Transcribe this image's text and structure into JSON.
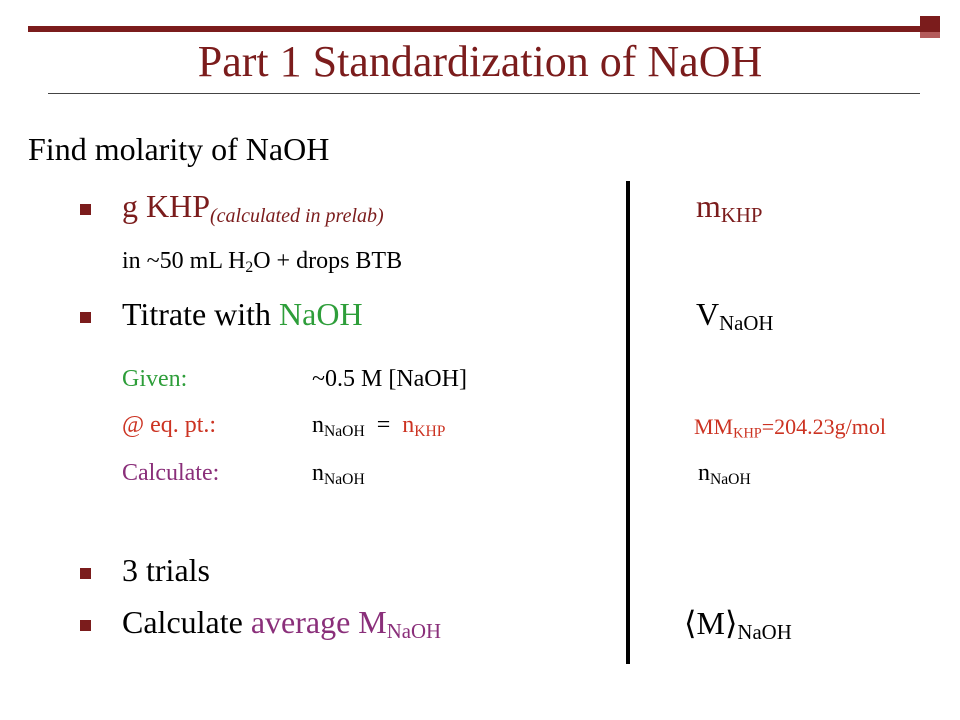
{
  "slide": {
    "title": "Part 1 Standardization of NaOH",
    "intro": "Find molarity of NaOH",
    "bullet1": {
      "main": "g KHP",
      "note": "(calculated in prelab)",
      "right_var": "m",
      "right_sub": "KHP"
    },
    "line_solution": {
      "pre": "in ~50 mL H",
      "sub": "2",
      "post": "O + drops BTB"
    },
    "bullet2": {
      "pre": "Titrate with ",
      "highlight": "NaOH",
      "right_var": "V",
      "right_sub": "NaOH"
    },
    "given": {
      "label": "Given:",
      "value": "~0.5 M [NaOH]"
    },
    "eqpt": {
      "label": "@ eq. pt.:",
      "lhs": "n",
      "lhs_sub": "NaOH",
      "eq": "  =  ",
      "rhs": "n",
      "rhs_sub": "KHP"
    },
    "mm": {
      "label": "MM",
      "sub": "KHP",
      "value": "=204.23g/mol"
    },
    "calculate": {
      "label": "Calculate:",
      "var": "n",
      "var_sub": "NaOH",
      "right_var": "n",
      "right_sub": "NaOH"
    },
    "bullet3": {
      "text": "3 trials"
    },
    "bullet4": {
      "pre": "Calculate ",
      "highlight": "average ",
      "var": "M",
      "var_sub": "NaOH",
      "right_var": "⟨M⟩",
      "right_sub": "NaOH"
    }
  },
  "colors": {
    "accent": "#7b1c1c",
    "green": "#2e9e3a",
    "red": "#cc3322",
    "purple": "#8a2f7a"
  }
}
